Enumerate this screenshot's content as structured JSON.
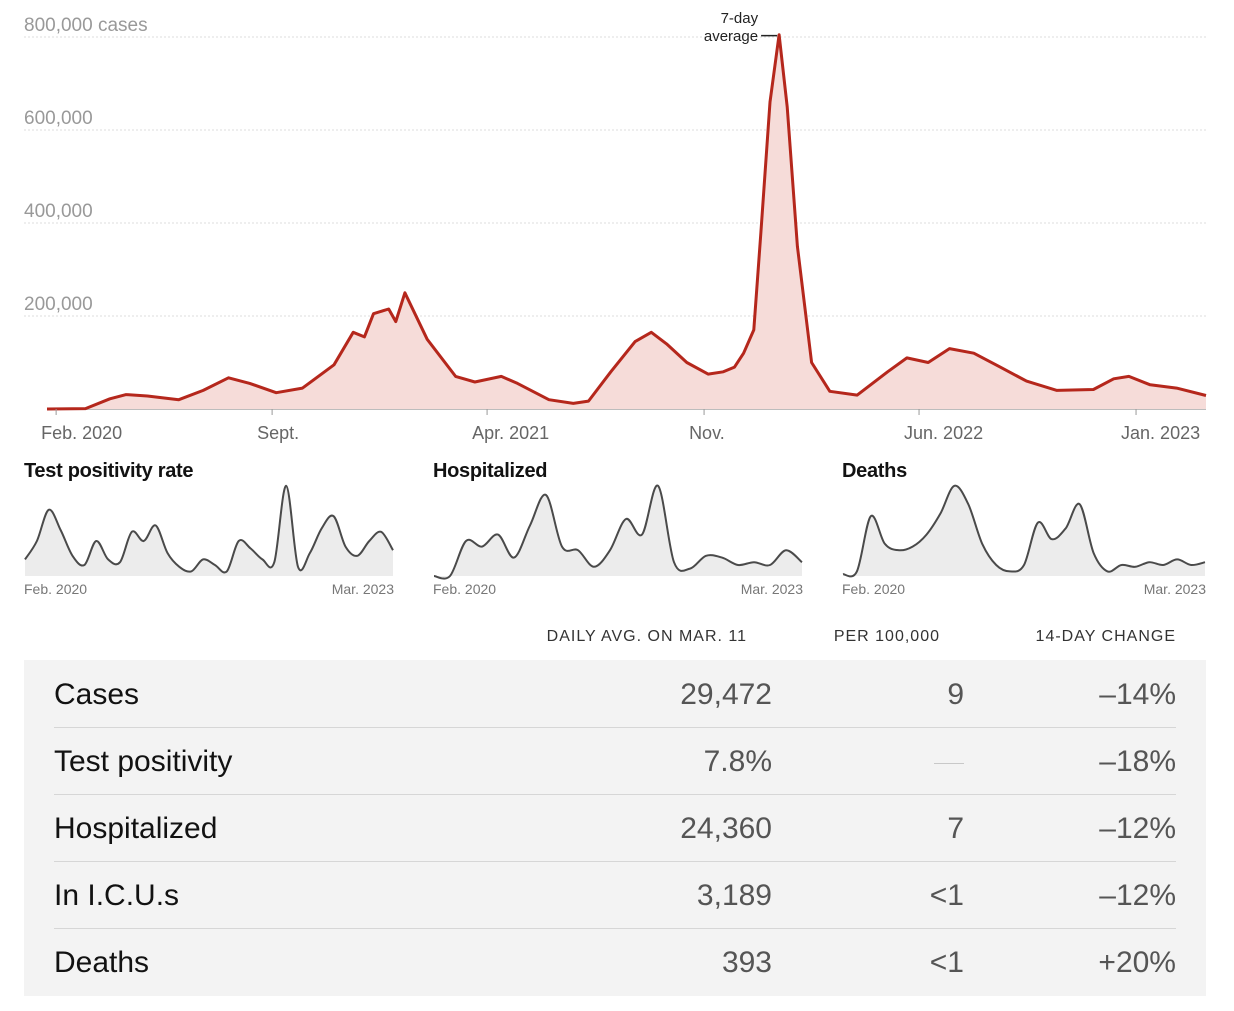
{
  "chart_data": [
    {
      "type": "area",
      "title": "",
      "ylabel_unit": "cases",
      "y_ticks": [
        "800,000 cases",
        "600,000",
        "400,000",
        "200,000"
      ],
      "y_tick_values": [
        800000,
        600000,
        400000,
        200000
      ],
      "ylim": [
        0,
        800000
      ],
      "x_ticks": [
        "Feb. 2020",
        "Sept.",
        "Apr. 2021",
        "Nov.",
        "Jun. 2022",
        "Jan. 2023"
      ],
      "x_tick_dates": [
        "2020-02-01",
        "2020-09-01",
        "2021-04-01",
        "2021-11-01",
        "2022-06-01",
        "2023-01-01"
      ],
      "xlim": [
        "2020-01-23",
        "2023-03-11"
      ],
      "annotation": {
        "line1": "7-day",
        "line2": "average",
        "date": "2022-01-14",
        "value": 805000
      },
      "series": [
        {
          "color": "#b5271c",
          "fill": "#f6dcd9",
          "points": [
            [
              "2020-01-23",
              0
            ],
            [
              "2020-03-01",
              800
            ],
            [
              "2020-03-25",
              22000
            ],
            [
              "2020-04-10",
              31000
            ],
            [
              "2020-05-01",
              28000
            ],
            [
              "2020-06-01",
              20000
            ],
            [
              "2020-06-25",
              40000
            ],
            [
              "2020-07-20",
              67000
            ],
            [
              "2020-08-10",
              55000
            ],
            [
              "2020-09-05",
              35000
            ],
            [
              "2020-10-01",
              45000
            ],
            [
              "2020-11-01",
              95000
            ],
            [
              "2020-11-20",
              165000
            ],
            [
              "2020-12-01",
              155000
            ],
            [
              "2020-12-10",
              205000
            ],
            [
              "2020-12-25",
              215000
            ],
            [
              "2021-01-01",
              188000
            ],
            [
              "2021-01-10",
              250000
            ],
            [
              "2021-02-01",
              150000
            ],
            [
              "2021-03-01",
              70000
            ],
            [
              "2021-03-20",
              58000
            ],
            [
              "2021-04-15",
              70000
            ],
            [
              "2021-05-01",
              55000
            ],
            [
              "2021-06-01",
              20000
            ],
            [
              "2021-06-25",
              12000
            ],
            [
              "2021-07-10",
              17000
            ],
            [
              "2021-08-01",
              80000
            ],
            [
              "2021-08-25",
              145000
            ],
            [
              "2021-09-10",
              165000
            ],
            [
              "2021-09-25",
              140000
            ],
            [
              "2021-10-15",
              100000
            ],
            [
              "2021-11-05",
              75000
            ],
            [
              "2021-11-20",
              80000
            ],
            [
              "2021-12-01",
              90000
            ],
            [
              "2021-12-10",
              120000
            ],
            [
              "2021-12-20",
              170000
            ],
            [
              "2021-12-27",
              380000
            ],
            [
              "2022-01-05",
              660000
            ],
            [
              "2022-01-14",
              805000
            ],
            [
              "2022-01-22",
              650000
            ],
            [
              "2022-02-01",
              350000
            ],
            [
              "2022-02-15",
              100000
            ],
            [
              "2022-03-05",
              38000
            ],
            [
              "2022-04-01",
              30000
            ],
            [
              "2022-05-01",
              80000
            ],
            [
              "2022-05-20",
              110000
            ],
            [
              "2022-06-10",
              100000
            ],
            [
              "2022-07-01",
              130000
            ],
            [
              "2022-07-25",
              120000
            ],
            [
              "2022-08-20",
              90000
            ],
            [
              "2022-09-15",
              60000
            ],
            [
              "2022-10-15",
              40000
            ],
            [
              "2022-11-20",
              42000
            ],
            [
              "2022-12-10",
              65000
            ],
            [
              "2022-12-25",
              70000
            ],
            [
              "2023-01-15",
              52000
            ],
            [
              "2023-02-10",
              45000
            ],
            [
              "2023-03-11",
              29000
            ]
          ]
        }
      ]
    },
    {
      "type": "area",
      "title": "Test positivity rate",
      "x_ticks": [
        "Feb. 2020",
        "Mar. 2023"
      ],
      "series": [
        {
          "color": "#4a4a4a",
          "values": [
            0.18,
            0.38,
            0.72,
            0.5,
            0.22,
            0.12,
            0.38,
            0.18,
            0.15,
            0.48,
            0.38,
            0.55,
            0.25,
            0.1,
            0.05,
            0.18,
            0.12,
            0.05,
            0.38,
            0.3,
            0.18,
            0.15,
            0.98,
            0.1,
            0.25,
            0.52,
            0.65,
            0.32,
            0.22,
            0.38,
            0.48,
            0.28
          ]
        }
      ]
    },
    {
      "type": "area",
      "title": "Hospitalized",
      "x_ticks": [
        "Feb. 2020",
        "Mar. 2023"
      ],
      "series": [
        {
          "color": "#4a4a4a",
          "values": [
            0.0,
            0.0,
            0.38,
            0.32,
            0.45,
            0.2,
            0.55,
            0.88,
            0.32,
            0.28,
            0.1,
            0.28,
            0.62,
            0.45,
            0.98,
            0.15,
            0.08,
            0.22,
            0.2,
            0.12,
            0.15,
            0.12,
            0.28,
            0.15
          ]
        }
      ]
    },
    {
      "type": "area",
      "title": "Deaths",
      "x_ticks": [
        "Feb. 2020",
        "Mar. 2023"
      ],
      "series": [
        {
          "color": "#4a4a4a",
          "values": [
            0.02,
            0.05,
            0.65,
            0.35,
            0.28,
            0.32,
            0.45,
            0.68,
            0.98,
            0.78,
            0.35,
            0.12,
            0.05,
            0.12,
            0.58,
            0.4,
            0.52,
            0.78,
            0.25,
            0.05,
            0.12,
            0.1,
            0.15,
            0.12,
            0.18,
            0.12,
            0.15
          ]
        }
      ]
    }
  ],
  "table": {
    "headers": {
      "avg": "DAILY AVG. ON MAR. 11",
      "per": "PER 100,000",
      "change": "14-DAY CHANGE"
    },
    "rows": [
      {
        "label": "Cases",
        "avg": "29,472",
        "per": "9",
        "change": "–14%"
      },
      {
        "label": "Test positivity",
        "avg": "7.8%",
        "per": "",
        "change": "–18%"
      },
      {
        "label": "Hospitalized",
        "avg": "24,360",
        "per": "7",
        "change": "–12%"
      },
      {
        "label": "In I.C.U.s",
        "avg": "3,189",
        "per": "<1",
        "change": "–12%"
      },
      {
        "label": "Deaths",
        "avg": "393",
        "per": "<1",
        "change": "+20%"
      }
    ]
  }
}
